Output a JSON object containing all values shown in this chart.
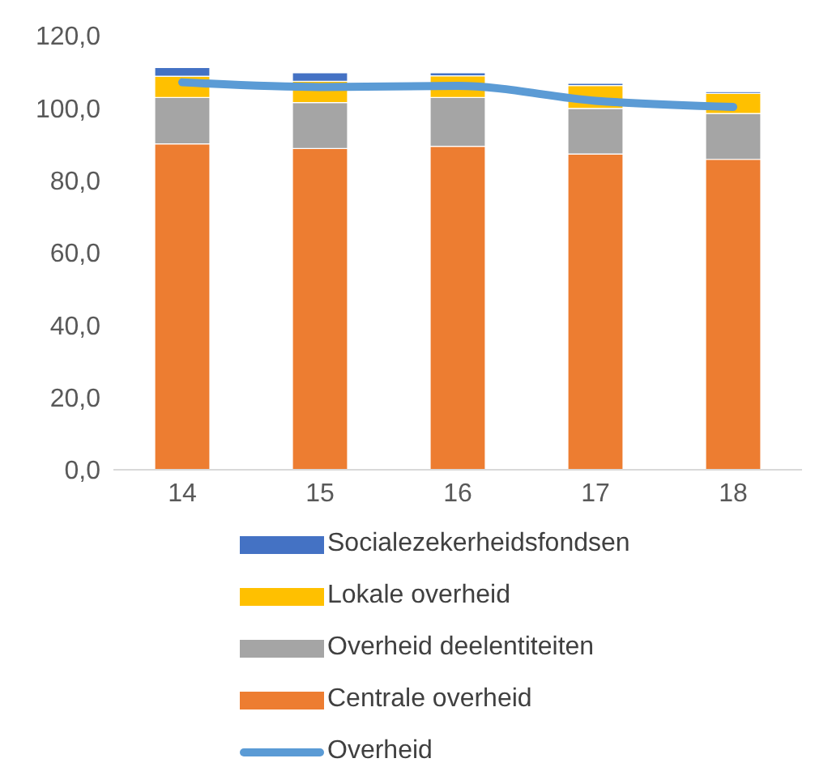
{
  "chart_data": {
    "type": "bar",
    "stacked": true,
    "categories": [
      "14",
      "15",
      "16",
      "17",
      "18"
    ],
    "series": [
      {
        "name": "Centrale overheid",
        "color": "#ed7d31",
        "values": [
          90.1,
          88.8,
          89.4,
          87.3,
          85.8
        ]
      },
      {
        "name": "Overheid deelentiteiten",
        "color": "#a5a5a5",
        "values": [
          12.8,
          12.7,
          13.5,
          12.6,
          12.7
        ]
      },
      {
        "name": "Lokale overheid",
        "color": "#ffc000",
        "values": [
          5.9,
          5.9,
          6.0,
          6.3,
          5.5
        ]
      },
      {
        "name": "Socialezekerheidsfondsen",
        "color": "#4472c4",
        "values": [
          2.4,
          2.3,
          0.8,
          0.6,
          0.5
        ]
      },
      {
        "name": "Overheid",
        "type": "line",
        "color": "#5b9bd5",
        "values": [
          107.1,
          105.8,
          106.1,
          102.0,
          100.3
        ]
      }
    ],
    "ylim": [
      0,
      120
    ],
    "yticks": [
      {
        "value": 0,
        "label": "0,0"
      },
      {
        "value": 20,
        "label": "20,0"
      },
      {
        "value": 40,
        "label": "40,0"
      },
      {
        "value": 60,
        "label": "60,0"
      },
      {
        "value": 80,
        "label": "80,0"
      },
      {
        "value": 100,
        "label": "100,0"
      },
      {
        "value": 120,
        "label": "120,0"
      }
    ],
    "grid": false,
    "legend": "bottom",
    "marker": "none"
  }
}
